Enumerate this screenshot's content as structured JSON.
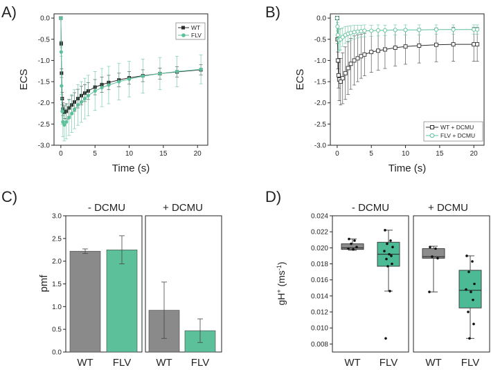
{
  "figure": {
    "colors": {
      "wt": "#2b2b2b",
      "flv": "#5cc09a",
      "wt_bar": "#8a8a8a",
      "flv_bar": "#5cc09a",
      "wt_box": "#8c8c8c",
      "flv_box": "#4dba96",
      "err": "#444444",
      "frame": "#222222"
    }
  },
  "chart_data": [
    {
      "panel": "A)",
      "type": "line",
      "xlabel": "Time (s)",
      "ylabel": "ECS",
      "xlim": [
        -1,
        21.5
      ],
      "ylim": [
        -3.0,
        0.1
      ],
      "xticks": [
        0,
        5,
        10,
        15,
        20
      ],
      "yticks": [
        0.0,
        -0.5,
        -1.0,
        -1.5,
        -2.0,
        -2.5,
        -3.0
      ],
      "ytick_labels": [
        "0.0",
        "-0.5",
        "-1.0",
        "-1.5",
        "-2.0",
        "-2.5",
        "-3.0"
      ],
      "legend": "top-right",
      "series": [
        {
          "name": "WT",
          "marker": "filled-square",
          "color": "#2b2b2b",
          "x": [
            0,
            0.05,
            0.1,
            0.2,
            0.3,
            0.5,
            0.8,
            1.2,
            1.6,
            2.0,
            2.5,
            3.0,
            3.5,
            4.0,
            5.0,
            6.0,
            7.0,
            8.5,
            10.0,
            12.0,
            14.5,
            17.0,
            20.5
          ],
          "y": [
            0.0,
            -0.6,
            -1.3,
            -1.9,
            -2.15,
            -2.22,
            -2.2,
            -2.12,
            -2.05,
            -1.98,
            -1.9,
            -1.83,
            -1.77,
            -1.72,
            -1.63,
            -1.57,
            -1.52,
            -1.46,
            -1.41,
            -1.36,
            -1.31,
            -1.27,
            -1.22
          ],
          "err": [
            0.02,
            0.05,
            0.1,
            0.15,
            0.15,
            0.15,
            0.18,
            0.2,
            0.22,
            0.22,
            0.22,
            0.22,
            0.2,
            0.2,
            0.18,
            0.18,
            0.17,
            0.16,
            0.15,
            0.14,
            0.13,
            0.12,
            0.12
          ]
        },
        {
          "name": "FLV",
          "marker": "filled-circle",
          "color": "#5cc09a",
          "x": [
            0,
            0.05,
            0.1,
            0.2,
            0.3,
            0.5,
            0.8,
            1.2,
            1.6,
            2.0,
            2.5,
            3.0,
            3.5,
            4.0,
            5.0,
            6.0,
            7.0,
            8.5,
            10.0,
            12.0,
            14.5,
            17.0,
            20.5
          ],
          "y": [
            0.0,
            -0.8,
            -1.6,
            -2.2,
            -2.45,
            -2.52,
            -2.45,
            -2.35,
            -2.25,
            -2.15,
            -2.05,
            -1.98,
            -1.9,
            -1.83,
            -1.72,
            -1.64,
            -1.58,
            -1.5,
            -1.44,
            -1.37,
            -1.31,
            -1.26,
            -1.21
          ],
          "err": [
            0.02,
            0.1,
            0.2,
            0.3,
            0.35,
            0.38,
            0.4,
            0.42,
            0.45,
            0.46,
            0.48,
            0.48,
            0.48,
            0.48,
            0.46,
            0.45,
            0.44,
            0.43,
            0.42,
            0.4,
            0.38,
            0.36,
            0.34
          ]
        }
      ]
    },
    {
      "panel": "B)",
      "type": "line",
      "xlabel": "Time (s)",
      "ylabel": "ECS",
      "xlim": [
        -1,
        21.5
      ],
      "ylim": [
        -3.0,
        0.1
      ],
      "xticks": [
        0,
        5,
        10,
        15,
        20
      ],
      "yticks": [
        0.0,
        -0.5,
        -1.0,
        -1.5,
        -2.0,
        -2.5,
        -3.0
      ],
      "ytick_labels": [
        "0.0",
        "-0.5",
        "-1.0",
        "-1.5",
        "-2.0",
        "-2.5",
        "-3.0"
      ],
      "legend": "bottom-right",
      "series": [
        {
          "name": "WT + DCMU",
          "marker": "open-square",
          "color": "#2b2b2b",
          "x": [
            0,
            0.05,
            0.1,
            0.2,
            0.3,
            0.5,
            0.8,
            1.2,
            1.6,
            2.0,
            2.5,
            3.0,
            3.5,
            4.0,
            5.0,
            6.0,
            7.0,
            8.5,
            10.0,
            12.0,
            14.5,
            17.0,
            20.0,
            20.5
          ],
          "y": [
            0.0,
            -0.5,
            -1.0,
            -1.35,
            -1.45,
            -1.5,
            -1.42,
            -1.3,
            -1.18,
            -1.08,
            -1.0,
            -0.95,
            -0.9,
            -0.86,
            -0.8,
            -0.77,
            -0.74,
            -0.7,
            -0.67,
            -0.65,
            -0.63,
            -0.62,
            -0.62,
            -0.62
          ],
          "err": [
            0.02,
            0.1,
            0.2,
            0.3,
            0.5,
            0.55,
            0.6,
            0.62,
            0.62,
            0.6,
            0.58,
            0.55,
            0.52,
            0.5,
            0.48,
            0.46,
            0.45,
            0.43,
            0.42,
            0.41,
            0.4,
            0.4,
            0.4,
            0.4
          ]
        },
        {
          "name": "FLV + DCMU",
          "marker": "open-circle",
          "color": "#5cc09a",
          "x": [
            0,
            0.05,
            0.1,
            0.2,
            0.3,
            0.5,
            0.8,
            1.2,
            1.6,
            2.0,
            2.5,
            3.0,
            3.5,
            4.0,
            5.0,
            6.0,
            7.0,
            8.5,
            10.0,
            12.0,
            14.5,
            17.0,
            20.0,
            20.5
          ],
          "y": [
            0.0,
            -0.2,
            -0.4,
            -0.5,
            -0.52,
            -0.5,
            -0.45,
            -0.4,
            -0.37,
            -0.35,
            -0.33,
            -0.32,
            -0.31,
            -0.3,
            -0.3,
            -0.29,
            -0.29,
            -0.28,
            -0.28,
            -0.28,
            -0.27,
            -0.27,
            -0.27,
            -0.27
          ],
          "err": [
            0.02,
            0.1,
            0.2,
            0.25,
            0.25,
            0.25,
            0.22,
            0.2,
            0.18,
            0.17,
            0.16,
            0.15,
            0.14,
            0.14,
            0.13,
            0.13,
            0.12,
            0.12,
            0.12,
            0.12,
            0.11,
            0.11,
            0.11,
            0.11
          ]
        }
      ]
    },
    {
      "panel": "C)",
      "type": "bar",
      "ylabel": "pmf",
      "ylim": [
        0,
        3.0
      ],
      "yticks": [
        0.0,
        0.5,
        1.0,
        1.5,
        2.0,
        2.5,
        3.0
      ],
      "ytick_labels": [
        "0.0",
        "0.5",
        "1.0",
        "1.5",
        "2.0",
        "2.5",
        "3.0"
      ],
      "groups": [
        {
          "title": "- DCMU",
          "categories": [
            "WT",
            "FLV"
          ],
          "values": [
            2.22,
            2.25
          ],
          "errors": [
            0.05,
            0.31
          ]
        },
        {
          "title": "+ DCMU",
          "categories": [
            "WT",
            "FLV"
          ],
          "values": [
            0.92,
            0.47
          ],
          "errors": [
            0.62,
            0.26
          ]
        }
      ]
    },
    {
      "panel": "D)",
      "type": "box",
      "ylabel_main": "gH",
      "ylabel_sup": "+",
      "ylabel_unit_open": " (ms",
      "ylabel_unit_sup": "-1",
      "ylabel_close": ")",
      "ylim": [
        0.007,
        0.024
      ],
      "yticks": [
        0.008,
        0.01,
        0.012,
        0.014,
        0.016,
        0.018,
        0.02,
        0.022,
        0.024
      ],
      "ytick_labels": [
        "0.008",
        "0.010",
        "0.012",
        "0.014",
        "0.016",
        "0.018",
        "0.020",
        "0.022",
        "0.024"
      ],
      "groups": [
        {
          "title": "- DCMU",
          "boxes": [
            {
              "label": "WT",
              "whisker_low": 0.0197,
              "q1": 0.0198,
              "median": 0.02,
              "q3": 0.0205,
              "whisker_high": 0.0211,
              "points": [
                0.0211,
                0.0209,
                0.0205,
                0.0201,
                0.0199,
                0.0198
              ]
            },
            {
              "label": "FLV",
              "whisker_low": 0.0146,
              "q1": 0.0177,
              "median": 0.0192,
              "q3": 0.0207,
              "whisker_high": 0.0222,
              "points": [
                0.0222,
                0.0209,
                0.0205,
                0.0201,
                0.0196,
                0.0192,
                0.019,
                0.0186,
                0.018,
                0.0177,
                0.0146,
                0.0087
              ]
            }
          ]
        },
        {
          "title": "+ DCMU",
          "boxes": [
            {
              "label": "WT",
              "whisker_low": 0.0145,
              "q1": 0.0187,
              "median": 0.0189,
              "q3": 0.0199,
              "whisker_high": 0.0202,
              "points": [
                0.0201,
                0.0199,
                0.0189,
                0.0187,
                0.0145
              ]
            },
            {
              "label": "FLV",
              "whisker_low": 0.0087,
              "q1": 0.0125,
              "median": 0.0147,
              "q3": 0.0172,
              "whisker_high": 0.019,
              "points": [
                0.019,
                0.0183,
                0.017,
                0.0155,
                0.0148,
                0.0145,
                0.0135,
                0.012,
                0.0105,
                0.0087
              ]
            }
          ]
        }
      ]
    }
  ]
}
